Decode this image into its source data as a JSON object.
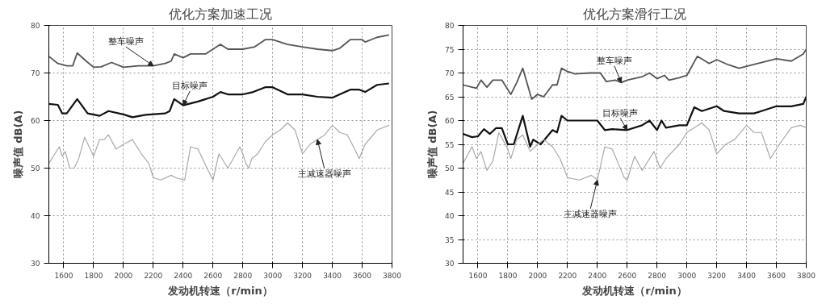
{
  "chart_data": [
    {
      "type": "line",
      "title": "优化方案加速工况",
      "xlabel": "发动机转速（r/min）",
      "ylabel": "噪声值 dB(A)",
      "xlim": [
        1500,
        3800
      ],
      "xticks": [
        1600,
        1800,
        2000,
        2200,
        2400,
        2600,
        2800,
        3000,
        3200,
        3400,
        3600,
        3800
      ],
      "ylim": [
        30,
        80
      ],
      "yticks": [
        30,
        40,
        50,
        60,
        70,
        80
      ],
      "grid": true,
      "series": [
        {
          "name": "整车噪声",
          "color": "#555555",
          "x": [
            1500,
            1560,
            1620,
            1660,
            1690,
            1750,
            1800,
            1850,
            1920,
            2000,
            2100,
            2200,
            2280,
            2320,
            2340,
            2400,
            2450,
            2550,
            2650,
            2700,
            2800,
            2880,
            2950,
            3000,
            3100,
            3200,
            3300,
            3400,
            3450,
            3520,
            3600,
            3620,
            3700,
            3780
          ],
          "values": [
            73.5,
            72,
            71.5,
            71.5,
            74.2,
            72.5,
            71.2,
            71.3,
            72.2,
            71.2,
            71.5,
            71.5,
            72,
            72.5,
            74,
            73.2,
            74,
            74,
            76,
            75,
            75,
            75.5,
            77,
            77,
            76,
            75.5,
            75,
            74.7,
            75.2,
            77,
            77,
            76.5,
            77.5,
            78
          ]
        },
        {
          "name": "目标噪声",
          "color": "#111111",
          "x": [
            1500,
            1560,
            1590,
            1620,
            1690,
            1760,
            1840,
            1900,
            2000,
            2060,
            2150,
            2280,
            2310,
            2340,
            2400,
            2500,
            2600,
            2650,
            2700,
            2800,
            2870,
            2950,
            3000,
            3100,
            3200,
            3300,
            3400,
            3450,
            3520,
            3580,
            3620,
            3700,
            3780
          ],
          "values": [
            63.5,
            63.3,
            61.5,
            61.5,
            64.5,
            61.5,
            61,
            62,
            61.3,
            60.7,
            61.2,
            61.5,
            62,
            64.5,
            63.2,
            64,
            65,
            66,
            65.5,
            65.5,
            66,
            67,
            67,
            65.5,
            65.5,
            65,
            64.8,
            65.5,
            66.5,
            66.5,
            66,
            67.5,
            67.8
          ]
        },
        {
          "name": "主减速器噪声",
          "color": "#aaaaaa",
          "x": [
            1500,
            1570,
            1590,
            1610,
            1640,
            1670,
            1700,
            1740,
            1800,
            1840,
            1870,
            1900,
            1950,
            2000,
            2060,
            2120,
            2170,
            2200,
            2250,
            2320,
            2350,
            2410,
            2450,
            2500,
            2560,
            2600,
            2640,
            2700,
            2780,
            2800,
            2820,
            2840,
            2860,
            2900,
            2950,
            3000,
            3050,
            3100,
            3150,
            3200,
            3250,
            3300,
            3350,
            3400,
            3450,
            3500,
            3550,
            3580,
            3620,
            3700,
            3780
          ],
          "values": [
            51,
            54.5,
            52.5,
            53.5,
            50,
            50,
            52,
            56.5,
            52.5,
            56,
            56,
            57,
            54,
            55,
            56,
            53,
            51,
            48,
            47.5,
            48.5,
            48,
            47.5,
            54.5,
            54,
            50,
            47.5,
            53,
            50,
            54.5,
            53,
            51,
            50,
            52,
            53,
            55.5,
            57,
            58,
            59.5,
            58,
            53,
            55,
            56,
            57,
            59,
            57.5,
            57,
            54,
            52,
            55,
            58,
            59
          ]
        }
      ]
    },
    {
      "type": "line",
      "title": "优化方案滑行工况",
      "xlabel": "发动机转速（r/min）",
      "ylabel": "噪声值 dB(A)",
      "xlim": [
        1500,
        3800
      ],
      "xticks": [
        1600,
        1800,
        2000,
        2200,
        2400,
        2600,
        2800,
        3000,
        3200,
        3400,
        3600,
        3800
      ],
      "ylim": [
        30,
        80
      ],
      "yticks": [
        30,
        35,
        40,
        45,
        50,
        55,
        60,
        65,
        70,
        75,
        80
      ],
      "grid": true,
      "series": [
        {
          "name": "整车噪声",
          "color": "#555555",
          "x": [
            1500,
            1560,
            1590,
            1620,
            1660,
            1700,
            1760,
            1820,
            1860,
            1900,
            1960,
            2000,
            2040,
            2100,
            2130,
            2160,
            2200,
            2250,
            2350,
            2420,
            2460,
            2520,
            2560,
            2600,
            2700,
            2750,
            2800,
            2850,
            2880,
            2950,
            3000,
            3070,
            3150,
            3200,
            3280,
            3350,
            3450,
            3600,
            3700,
            3780,
            3800
          ],
          "values": [
            67.5,
            67,
            66.8,
            68.5,
            67,
            68.5,
            68.5,
            65.5,
            68,
            71,
            64.5,
            65.5,
            65,
            67.5,
            67.5,
            71,
            70.3,
            69.8,
            70,
            70,
            68.2,
            68.5,
            68,
            68.5,
            69.2,
            70,
            68.8,
            69.5,
            68.5,
            69,
            69.5,
            73.5,
            72,
            72.8,
            71.7,
            71,
            71.8,
            73,
            72.5,
            74,
            75
          ]
        },
        {
          "name": "目标噪声",
          "color": "#111111",
          "x": [
            1500,
            1560,
            1600,
            1640,
            1680,
            1720,
            1760,
            1800,
            1840,
            1900,
            1950,
            1970,
            2020,
            2100,
            2130,
            2160,
            2200,
            2300,
            2400,
            2450,
            2500,
            2600,
            2700,
            2750,
            2800,
            2830,
            2860,
            2950,
            3000,
            3050,
            3100,
            3200,
            3250,
            3350,
            3450,
            3500,
            3600,
            3700,
            3780,
            3800
          ],
          "values": [
            57.2,
            56.5,
            56.7,
            58.2,
            57.2,
            58.4,
            58.4,
            55,
            55,
            61,
            54.5,
            56,
            55,
            58,
            57.5,
            61,
            60,
            60,
            60,
            58,
            58.2,
            58,
            59,
            60,
            58,
            60,
            58.5,
            59,
            59,
            62.8,
            62,
            63,
            62,
            61.5,
            61.5,
            62,
            63,
            63,
            63.5,
            65
          ]
        },
        {
          "name": "主减速器噪声",
          "color": "#aaaaaa",
          "x": [
            1500,
            1560,
            1590,
            1620,
            1660,
            1700,
            1740,
            1800,
            1820,
            1860,
            1900,
            1950,
            2000,
            2040,
            2100,
            2150,
            2200,
            2280,
            2360,
            2400,
            2450,
            2500,
            2580,
            2600,
            2650,
            2700,
            2780,
            2820,
            2860,
            2950,
            3000,
            3050,
            3100,
            3150,
            3200,
            3260,
            3320,
            3400,
            3450,
            3500,
            3560,
            3620,
            3700,
            3760,
            3800
          ],
          "values": [
            51,
            54.5,
            52,
            53.5,
            49.5,
            51.5,
            57.5,
            54,
            52,
            56,
            57,
            53.5,
            55,
            56,
            54.5,
            52,
            48,
            47.5,
            48.5,
            47.5,
            54.5,
            54,
            48,
            47.5,
            52.5,
            49.5,
            53.5,
            50,
            52,
            55,
            57.5,
            58.5,
            59.5,
            58,
            53,
            55,
            56,
            59,
            57.5,
            57.5,
            52,
            55,
            58.5,
            59,
            58.5
          ]
        }
      ]
    }
  ]
}
